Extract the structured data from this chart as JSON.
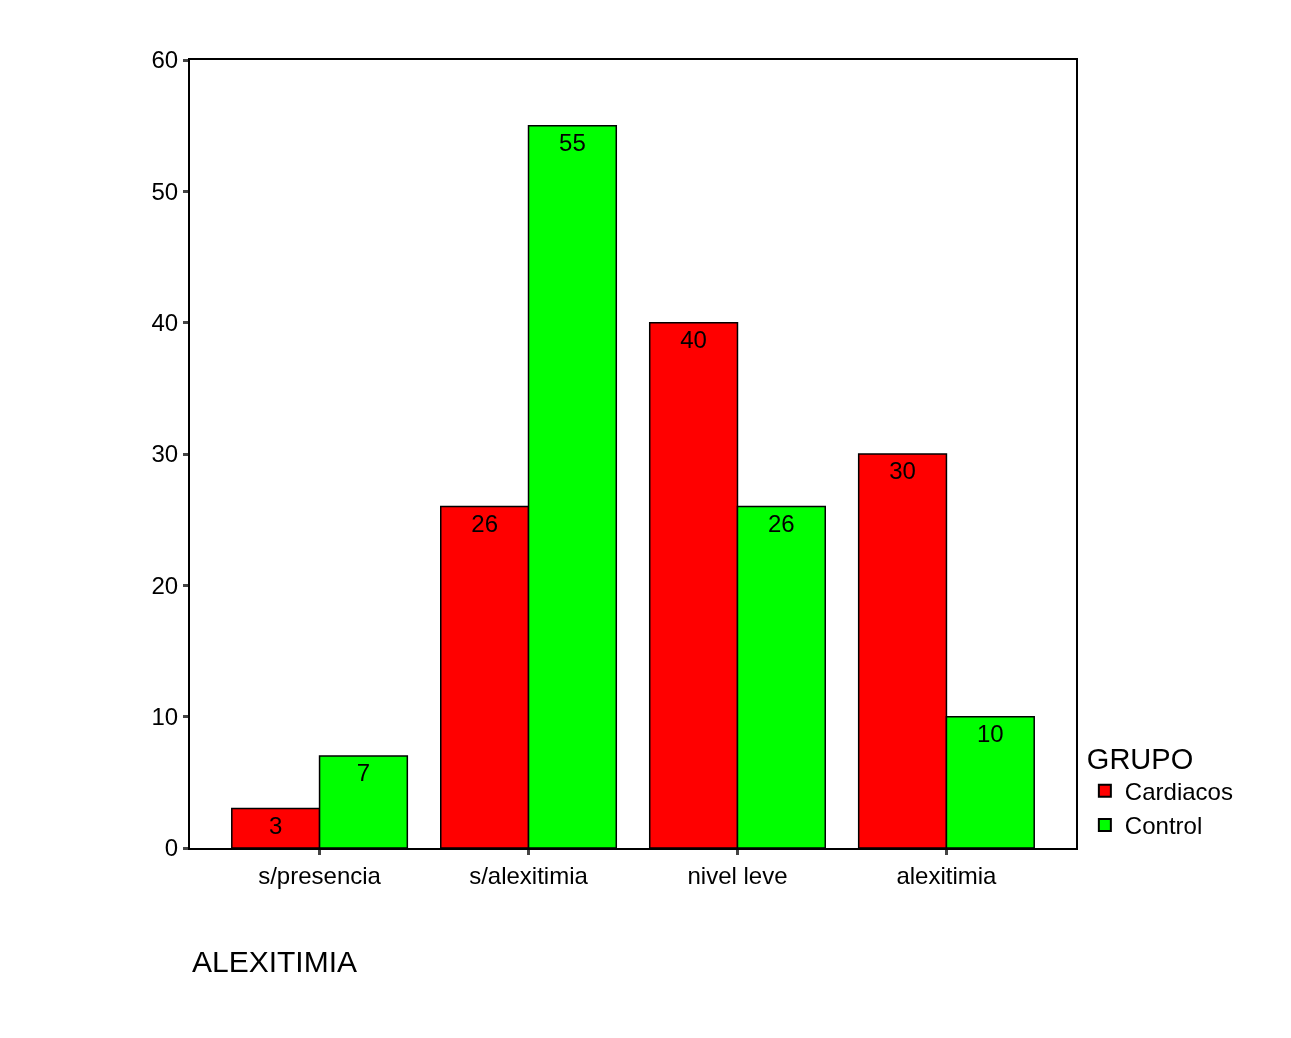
{
  "chart_data": {
    "type": "bar",
    "xlabel": "ALEXITIMIA",
    "legend_title": "GRUPO",
    "categories": [
      "s/presencia",
      "s/alexitimia",
      "nivel leve",
      "alexitimia"
    ],
    "series": [
      {
        "name": "Cardiacos",
        "color": "#ff0000",
        "values": [
          3,
          26,
          40,
          30
        ]
      },
      {
        "name": "Control",
        "color": "#00ff00",
        "values": [
          7,
          55,
          26,
          10
        ]
      }
    ],
    "ylim": [
      0,
      60
    ],
    "yticks": [
      0,
      10,
      20,
      30,
      40,
      50,
      60
    ],
    "data_labels": true,
    "legend": "right"
  }
}
